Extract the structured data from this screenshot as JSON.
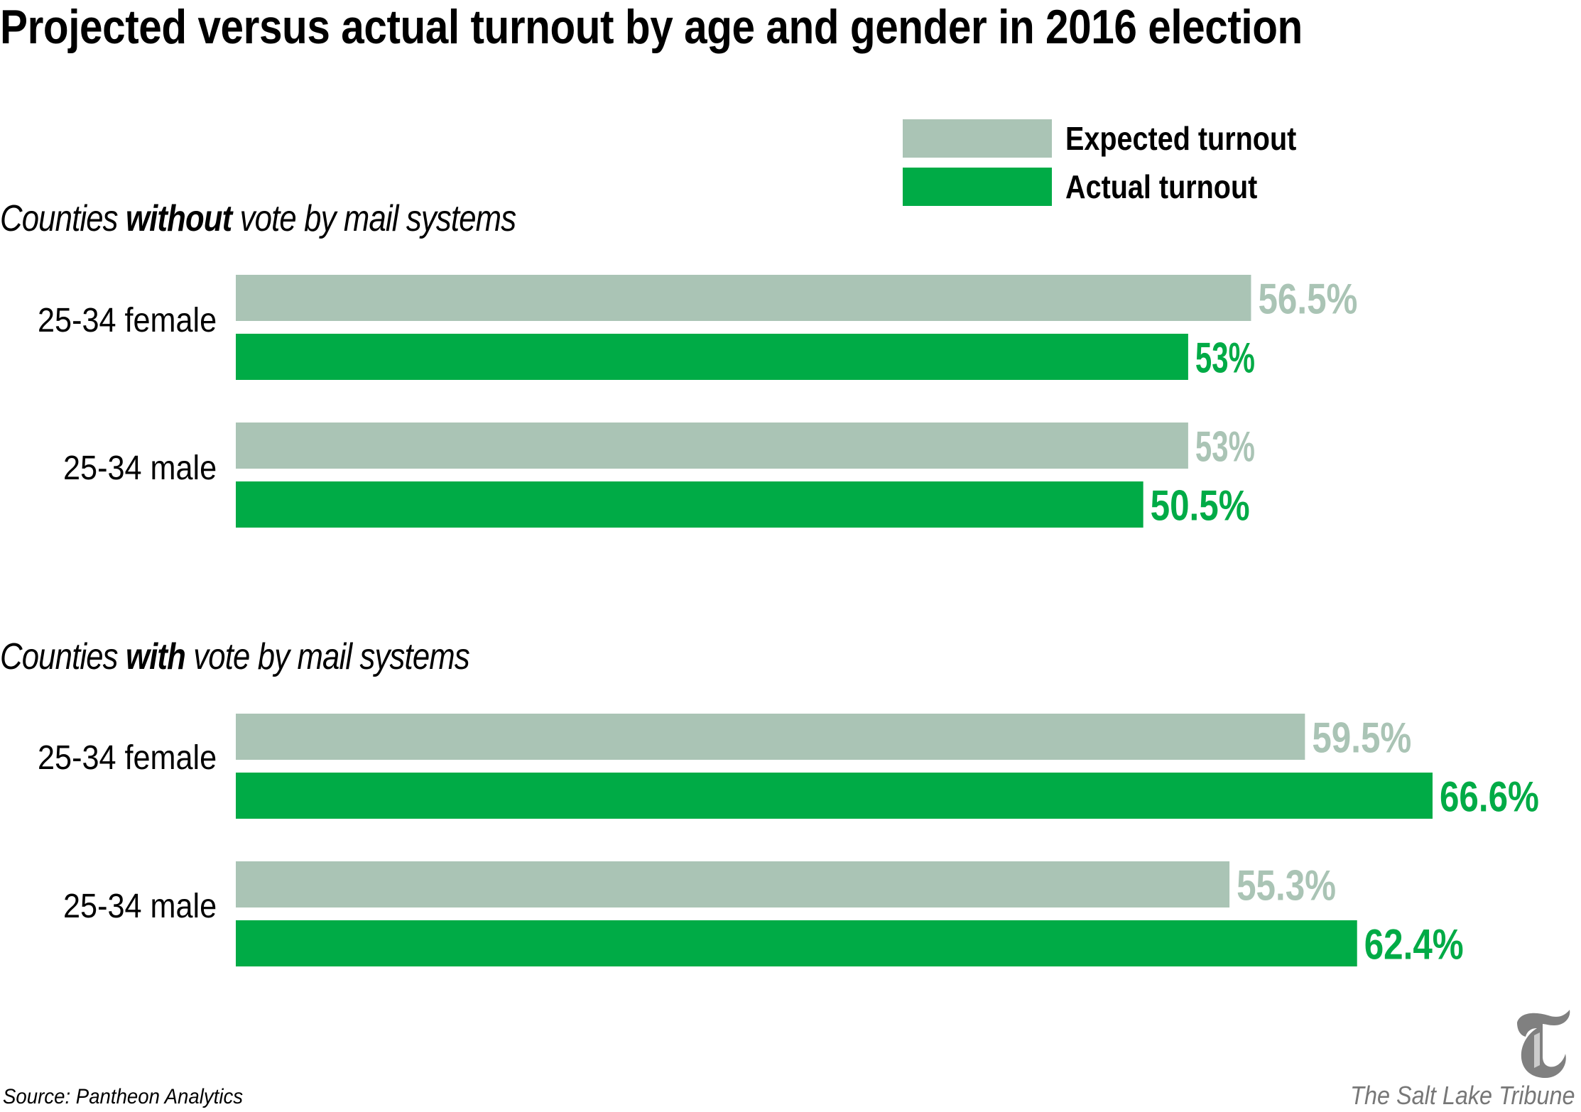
{
  "title": "Projected versus actual turnout by age and gender in 2016 election",
  "legend": [
    {
      "label": "Expected turnout",
      "color": "#aac4b5"
    },
    {
      "label": "Actual turnout",
      "color": "#00ab46"
    }
  ],
  "sections": [
    {
      "prefix": "Counties ",
      "emphasis": "without",
      "suffix": " vote by mail systems"
    },
    {
      "prefix": "Counties ",
      "emphasis": "with",
      "suffix": " vote by mail systems"
    }
  ],
  "source": "Source: Pantheon Analytics",
  "credit": "The Salt Lake Tribune",
  "logo_icon": "tribune-t-logo-icon",
  "chart_data": {
    "type": "bar",
    "orientation": "horizontal",
    "title": "Projected versus actual turnout by age and gender in 2016 election",
    "xlabel": "",
    "ylabel": "",
    "xlim": [
      0,
      70
    ],
    "grid": false,
    "legend_position": "top-right",
    "groups": [
      {
        "section": "Counties without vote by mail systems",
        "categories": [
          "25-34 female",
          "25-34 male"
        ],
        "series": [
          {
            "name": "Expected turnout",
            "values": [
              56.5,
              53
            ],
            "labels": [
              "56.5%",
              "53%"
            ],
            "color": "#aac4b5"
          },
          {
            "name": "Actual turnout",
            "values": [
              53,
              50.5
            ],
            "labels": [
              "53%",
              "50.5%"
            ],
            "color": "#00ab46"
          }
        ]
      },
      {
        "section": "Counties with vote by mail systems",
        "categories": [
          "25-34 female",
          "25-34 male"
        ],
        "series": [
          {
            "name": "Expected turnout",
            "values": [
              59.5,
              55.3
            ],
            "labels": [
              "59.5%",
              "55.3%"
            ],
            "color": "#aac4b5"
          },
          {
            "name": "Actual turnout",
            "values": [
              66.6,
              62.4
            ],
            "labels": [
              "66.6%",
              "62.4%"
            ],
            "color": "#00ab46"
          }
        ]
      }
    ]
  }
}
